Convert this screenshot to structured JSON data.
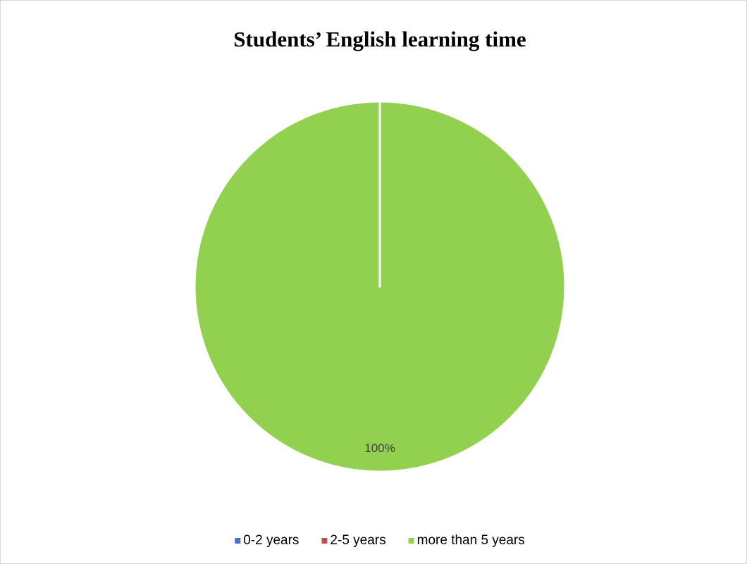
{
  "chart_data": {
    "type": "pie",
    "title": "Students’ English learning time",
    "categories": [
      "0-2 years",
      "2-5 years",
      "more than 5 years"
    ],
    "values": [
      0,
      0,
      100
    ],
    "value_labels": [
      null,
      null,
      "100%"
    ],
    "colors": [
      "#4472c4",
      "#c0504d",
      "#92d050"
    ],
    "legend": "bottom"
  }
}
